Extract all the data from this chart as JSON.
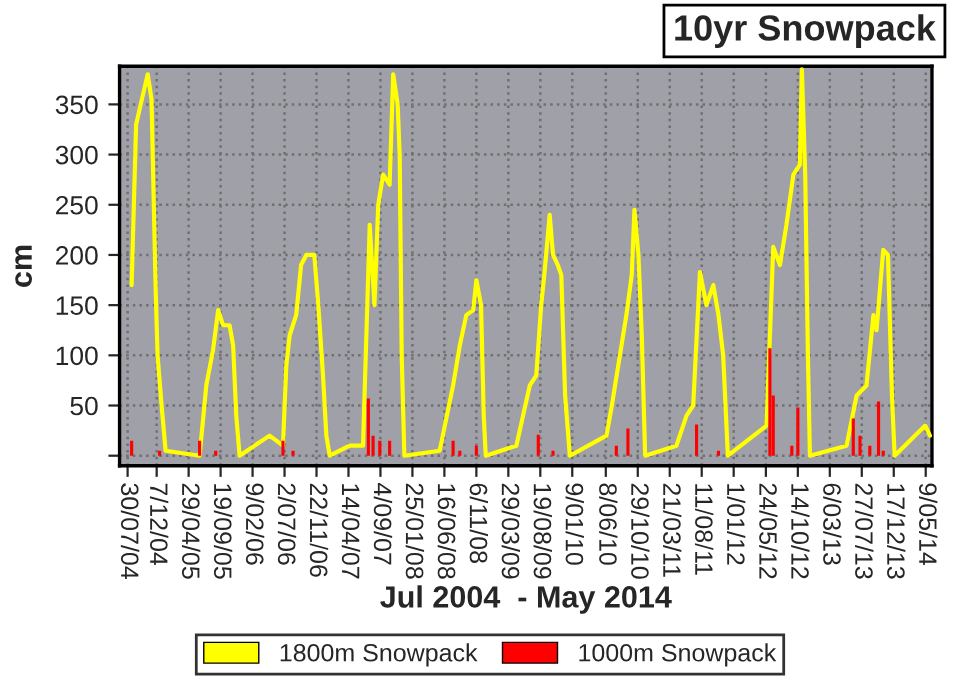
{
  "chart_data": {
    "type": "line",
    "title": "10yr Snowpack",
    "xlabel": "Jul 2004  - May 2014",
    "ylabel": "cm",
    "xlim": [
      "2004-06-24",
      "2014-06-06"
    ],
    "ylim": [
      -10,
      388
    ],
    "yticks": [
      {
        "value": 0,
        "label": null
      },
      50,
      100,
      150,
      200,
      250,
      300,
      350
    ],
    "xticks": [
      {
        "value": "2004-07-30",
        "label": "30/07/04"
      },
      {
        "value": "2004-12-07",
        "label": "7/12/04"
      },
      {
        "value": "2005-04-29",
        "label": "29/04/05"
      },
      {
        "value": "2005-09-19",
        "label": "19/09/05"
      },
      {
        "value": "2006-02-09",
        "label": "9/02/06"
      },
      {
        "value": "2006-07-02",
        "label": "2/07/06"
      },
      {
        "value": "2006-11-22",
        "label": "22/11/06"
      },
      {
        "value": "2007-04-14",
        "label": "14/04/07"
      },
      {
        "value": "2007-09-04",
        "label": "4/09/07"
      },
      {
        "value": "2008-01-25",
        "label": "25/01/08"
      },
      {
        "value": "2008-06-16",
        "label": "16/06/08"
      },
      {
        "value": "2008-11-06",
        "label": "6/11/08"
      },
      {
        "value": "2009-03-29",
        "label": "29/03/09"
      },
      {
        "value": "2009-08-19",
        "label": "19/08/09"
      },
      {
        "value": "2010-01-09",
        "label": "9/01/10"
      },
      {
        "value": "2010-06-08",
        "label": "8/06/10"
      },
      {
        "value": "2010-10-29",
        "label": "29/10/10"
      },
      {
        "value": "2011-03-21",
        "label": "21/03/11"
      },
      {
        "value": "2011-08-11",
        "label": "11/08/11"
      },
      {
        "value": "2012-01-01",
        "label": "1/01/12"
      },
      {
        "value": "2012-05-24",
        "label": "24/05/12"
      },
      {
        "value": "2012-10-14",
        "label": "14/10/12"
      },
      {
        "value": "2013-03-06",
        "label": "6/03/13"
      },
      {
        "value": "2013-07-27",
        "label": "27/07/13"
      },
      {
        "value": "2013-12-17",
        "label": "17/12/13"
      },
      {
        "value": "2014-05-09",
        "label": "9/05/14"
      }
    ],
    "grid": true,
    "legend": "bottom",
    "marker": "none",
    "line_style": "solid",
    "series": [
      {
        "name": "1800m Snowpack",
        "color": "#ffff00",
        "x": [
          "2004-08-17",
          "2004-09-06",
          "2004-10-07",
          "2004-10-28",
          "2004-11-14",
          "2004-12-02",
          "2004-12-11",
          "2004-12-29",
          "2005-01-16",
          "2005-06-17",
          "2005-07-17",
          "2005-08-16",
          "2005-09-08",
          "2005-09-30",
          "2005-10-29",
          "2005-11-14",
          "2005-11-28",
          "2005-12-13",
          "2006-04-26",
          "2006-06-25",
          "2006-07-10",
          "2006-07-25",
          "2006-08-23",
          "2006-09-14",
          "2006-10-07",
          "2006-11-12",
          "2006-11-30",
          "2006-12-21",
          "2007-01-05",
          "2007-01-20",
          "2007-04-19",
          "2007-06-18",
          "2007-07-18",
          "2007-08-08",
          "2007-08-25",
          "2007-09-16",
          "2007-10-15",
          "2007-10-31",
          "2007-11-20",
          "2007-11-29",
          "2007-12-08",
          "2007-12-20",
          "2008-05-26",
          "2008-07-25",
          "2008-08-24",
          "2008-09-22",
          "2008-10-23",
          "2008-11-06",
          "2008-11-27",
          "2008-12-09",
          "2008-12-18",
          "2009-05-04",
          "2009-06-03",
          "2009-07-03",
          "2009-08-01",
          "2009-08-23",
          "2009-09-06",
          "2009-09-30",
          "2009-10-15",
          "2009-11-05",
          "2009-11-21",
          "2009-12-08",
          "2009-12-29",
          "2010-06-11",
          "2010-07-05",
          "2010-08-10",
          "2010-09-08",
          "2010-10-02",
          "2010-10-14",
          "2010-11-01",
          "2010-11-16",
          "2010-12-01",
          "2011-04-20",
          "2011-06-04",
          "2011-07-04",
          "2011-08-03",
          "2011-09-01",
          "2011-10-02",
          "2011-10-25",
          "2011-11-15",
          "2011-12-06",
          "2012-05-27",
          "2012-06-26",
          "2012-07-26",
          "2012-08-24",
          "2012-09-24",
          "2012-10-23",
          "2012-11-01",
          "2012-11-16",
          "2012-11-28",
          "2012-12-07",
          "2013-05-20",
          "2013-07-04",
          "2013-08-17",
          "2013-09-17",
          "2013-10-01",
          "2013-10-31",
          "2013-11-21",
          "2013-12-09",
          "2013-12-21",
          "2014-05-07",
          "2014-05-28"
        ],
        "values": [
          170,
          330,
          360,
          380,
          355,
          170,
          100,
          50,
          5,
          0,
          70,
          105,
          145,
          130,
          130,
          110,
          40,
          0,
          20,
          10,
          90,
          120,
          140,
          190,
          200,
          200,
          150,
          80,
          20,
          0,
          10,
          10,
          230,
          150,
          250,
          280,
          270,
          380,
          350,
          300,
          100,
          0,
          5,
          70,
          110,
          140,
          145,
          175,
          150,
          40,
          0,
          10,
          40,
          70,
          80,
          150,
          180,
          240,
          200,
          190,
          180,
          60,
          0,
          20,
          50,
          100,
          140,
          180,
          245,
          200,
          120,
          0,
          10,
          40,
          50,
          183,
          150,
          170,
          140,
          100,
          0,
          30,
          208,
          190,
          230,
          280,
          290,
          385,
          280,
          100,
          0,
          10,
          60,
          70,
          140,
          125,
          205,
          200,
          60,
          0,
          30,
          20
        ]
      },
      {
        "name": "1000m Snowpack",
        "color": "#ff0000",
        "type": "bar",
        "x": [
          "2004-08-17",
          "2004-12-20",
          "2005-06-17",
          "2005-08-28",
          "2006-06-25",
          "2006-08-09",
          "2007-07-12",
          "2007-08-02",
          "2007-09-01",
          "2007-10-15",
          "2008-07-25",
          "2008-08-24",
          "2008-11-06",
          "2009-08-10",
          "2009-10-15",
          "2010-07-25",
          "2010-09-15",
          "2011-07-19",
          "2011-10-25",
          "2012-06-11",
          "2012-06-26",
          "2012-09-17",
          "2012-10-14",
          "2013-06-19",
          "2013-07-19",
          "2013-09-01",
          "2013-10-10",
          "2013-10-31"
        ],
        "values": [
          15,
          5,
          15,
          5,
          15,
          5,
          57,
          20,
          15,
          15,
          15,
          5,
          10,
          21,
          5,
          10,
          27,
          31,
          5,
          107,
          60,
          10,
          48,
          37,
          20,
          10,
          54,
          5
        ]
      }
    ]
  }
}
